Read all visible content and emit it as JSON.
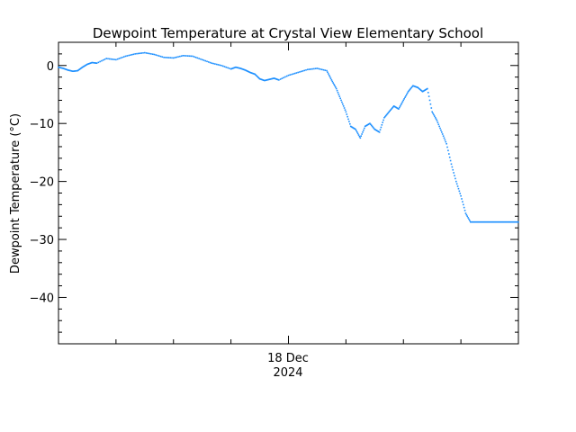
{
  "chart_data": {
    "type": "scatter",
    "title": "Dewpoint Temperature at Crystal View Elementary School",
    "ylabel": "Dewpoint Temperature (°C)",
    "xlabel": "",
    "x_axis": {
      "range_hours": [
        -24,
        24
      ],
      "major_tick_label": [
        "18 Dec",
        "2024"
      ],
      "major_tick_at_hour": 0
    },
    "ylim": [
      -48,
      4
    ],
    "yticks": [
      0,
      -10,
      -20,
      -30,
      -40
    ],
    "ytick_labels": [
      "0",
      "−10",
      "−20",
      "−30",
      "−40"
    ],
    "grid": false,
    "marker_color": "#1e90ff",
    "series": [
      {
        "name": "",
        "x_hours": [
          -24,
          -23.5,
          -23,
          -22.5,
          -22,
          -21.5,
          -21,
          -20.5,
          -20,
          -19,
          -18,
          -17,
          -16,
          -15,
          -14,
          -13,
          -12,
          -11,
          -10,
          -9,
          -8,
          -7,
          -6,
          -5.5,
          -5,
          -4.5,
          -4,
          -3.5,
          -3,
          -2.5,
          -2,
          -1.5,
          -1,
          0,
          1,
          2,
          3,
          4,
          4.5,
          5,
          5.5,
          6,
          6.5,
          7,
          7.5,
          8,
          8.5,
          9,
          9.5,
          10,
          10.5,
          11,
          11.5,
          12,
          12.5,
          13,
          13.5,
          14,
          14.5,
          15,
          15.5,
          16,
          16.5,
          17,
          17.5,
          18,
          18.5,
          19,
          19.5,
          20,
          20.5,
          21,
          21.5,
          22,
          22.5,
          23,
          23.5,
          24
        ],
        "y": [
          -0.3,
          -0.5,
          -0.8,
          -1.0,
          -0.9,
          -0.3,
          0.2,
          0.5,
          0.4,
          1.2,
          1.0,
          1.6,
          2.0,
          2.2,
          1.9,
          1.4,
          1.3,
          1.7,
          1.6,
          1.0,
          0.4,
          0.0,
          -0.6,
          -0.3,
          -0.5,
          -0.8,
          -1.2,
          -1.5,
          -2.3,
          -2.6,
          -2.4,
          -2.2,
          -2.5,
          -1.7,
          -1.2,
          -0.7,
          -0.5,
          -0.9,
          -2.5,
          -4.0,
          -6.0,
          -8.0,
          -10.5,
          -11.0,
          -12.5,
          -10.5,
          -10.0,
          -11.0,
          -11.5,
          -9.0,
          -8.0,
          -7.0,
          -7.5,
          -6.0,
          -4.5,
          -3.5,
          -3.8,
          -4.5,
          -4.0,
          -8.0,
          -9.5,
          -11.5,
          -13.5,
          -17.0,
          -20.0,
          -22.5,
          -25.5,
          -27,
          -27,
          -27,
          -27,
          -27,
          -27,
          -27,
          -27,
          -27,
          -27,
          -27
        ]
      }
    ]
  }
}
